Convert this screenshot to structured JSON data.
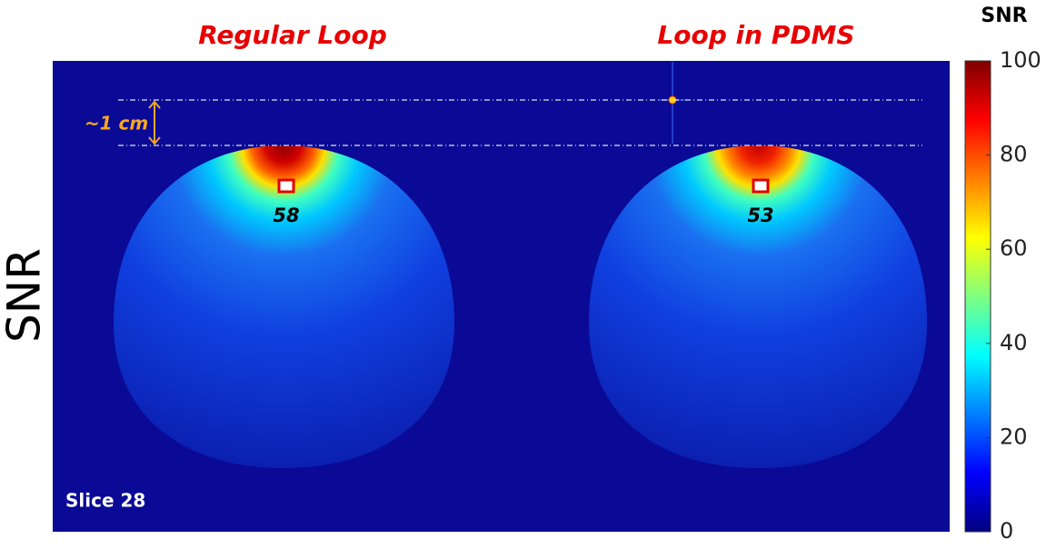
{
  "figure": {
    "row_label": "SNR",
    "panels": [
      {
        "title": "Regular Loop",
        "roi_value": 58
      },
      {
        "title": "Loop in PDMS",
        "roi_value": 53
      }
    ],
    "distance_label": "~1 cm",
    "slice_label": "Slice 28",
    "colorbar": {
      "title": "SNR",
      "lim": [
        0,
        100
      ],
      "ticks": [
        0,
        20,
        40,
        60,
        80,
        100
      ],
      "colors": [
        "#00007f",
        "#0000ff",
        "#007fff",
        "#00ffff",
        "#7fff7f",
        "#ffff00",
        "#ff7f00",
        "#ff0000",
        "#7f0000"
      ]
    }
  }
}
